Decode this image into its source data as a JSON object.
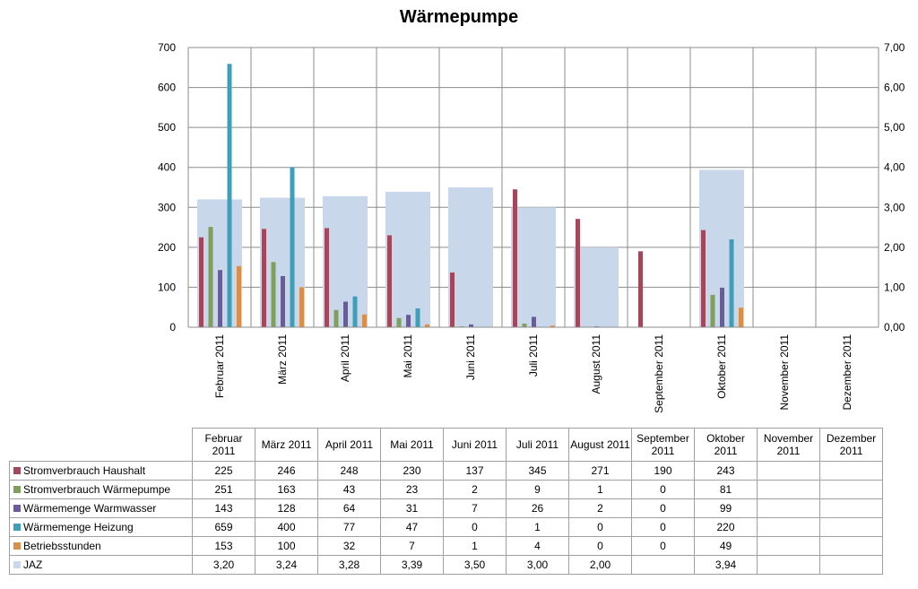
{
  "chart_data": {
    "type": "bar",
    "title": "Wärmepumpe",
    "categories": [
      "Februar 2011",
      "März 2011",
      "April 2011",
      "Mai 2011",
      "Juni 2011",
      "Juli 2011",
      "August 2011",
      "September 2011",
      "Oktober 2011",
      "November 2011",
      "Dezember 2011"
    ],
    "ylim": [
      0,
      700
    ],
    "y_ticks": [
      "0",
      "100",
      "200",
      "300",
      "400",
      "500",
      "600",
      "700"
    ],
    "y2lim": [
      0,
      7
    ],
    "y2_ticks": [
      "0,00",
      "1,00",
      "2,00",
      "3,00",
      "4,00",
      "5,00",
      "6,00",
      "7,00"
    ],
    "grid": true,
    "series": [
      {
        "name": "Stromverbrauch Haushalt",
        "color": "#a3475a",
        "values": [
          225,
          246,
          248,
          230,
          137,
          345,
          271,
          190,
          243,
          null,
          null
        ],
        "labels": [
          "225",
          "246",
          "248",
          "230",
          "137",
          "345",
          "271",
          "190",
          "243",
          "",
          ""
        ]
      },
      {
        "name": "Stromverbrauch Wärmepumpe",
        "color": "#7f9f5a",
        "values": [
          251,
          163,
          43,
          23,
          2,
          9,
          1,
          0,
          81,
          null,
          null
        ],
        "labels": [
          "251",
          "163",
          "43",
          "23",
          "2",
          "9",
          "1",
          "0",
          "81",
          "",
          ""
        ]
      },
      {
        "name": "Wärmemenge Warmwasser",
        "color": "#6b5a9e",
        "values": [
          143,
          128,
          64,
          31,
          7,
          26,
          2,
          0,
          99,
          null,
          null
        ],
        "labels": [
          "143",
          "128",
          "64",
          "31",
          "7",
          "26",
          "2",
          "0",
          "99",
          "",
          ""
        ]
      },
      {
        "name": "Wärmemenge Heizung",
        "color": "#3f9fb8",
        "values": [
          659,
          400,
          77,
          47,
          0,
          1,
          0,
          0,
          220,
          null,
          null
        ],
        "labels": [
          "659",
          "400",
          "77",
          "47",
          "0",
          "1",
          "0",
          "0",
          "220",
          "",
          ""
        ]
      },
      {
        "name": "Betriebsstunden",
        "color": "#d98f4a",
        "values": [
          153,
          100,
          32,
          7,
          1,
          4,
          0,
          0,
          49,
          null,
          null
        ],
        "labels": [
          "153",
          "100",
          "32",
          "7",
          "1",
          "4",
          "0",
          "0",
          "49",
          "",
          ""
        ]
      },
      {
        "name": "JAZ",
        "color": "#c9d7ea",
        "axis": "secondary",
        "values": [
          3.2,
          3.24,
          3.28,
          3.39,
          3.5,
          3.0,
          2.0,
          null,
          3.94,
          null,
          null
        ],
        "labels": [
          "3,20",
          "3,24",
          "3,28",
          "3,39",
          "3,50",
          "3,00",
          "2,00",
          "",
          "3,94",
          "",
          ""
        ]
      }
    ],
    "table_headers": [
      "Februar 2011",
      "März 2011",
      "April 2011",
      "Mai 2011",
      "Juni 2011",
      "Juli 2011",
      "August 2011",
      "September 2011",
      "Oktober 2011",
      "November 2011",
      "Dezember 2011"
    ]
  }
}
